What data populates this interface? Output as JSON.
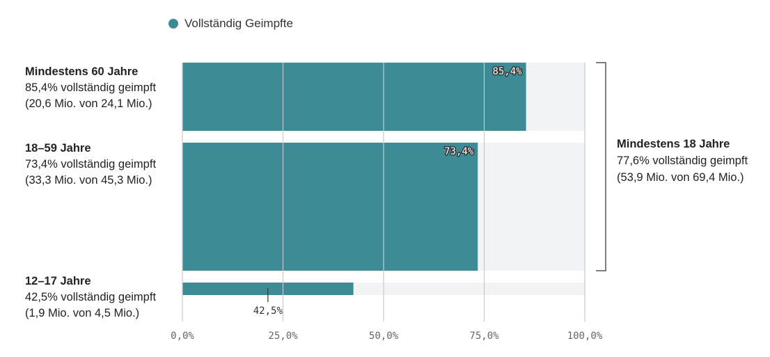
{
  "legend": {
    "label": "Vollständig Geimpfte",
    "color": "#3d8b94"
  },
  "rows": [
    {
      "title": "Mindestens 60 Jahre",
      "line1": "85,4% vollständig geimpft",
      "line2": "(20,6 Mio. von 24,1 Mio.)"
    },
    {
      "title": "18–59 Jahre",
      "line1": "73,4% vollständig geimpft",
      "line2": "(33,3 Mio. von 45,3 Mio.)"
    },
    {
      "title": "12–17 Jahre",
      "line1": "42,5% vollständig geimpft",
      "line2": "(1,9 Mio. von 4,5 Mio.)"
    }
  ],
  "group": {
    "title": "Mindestens 18 Jahre",
    "line1": "77,6% vollständig geimpft",
    "line2": "(53,9 Mio. von 69,4 Mio.)"
  },
  "chart_data": {
    "type": "bar",
    "orientation": "horizontal",
    "categories": [
      "Mindestens 60 Jahre",
      "18–59 Jahre",
      "12–17 Jahre"
    ],
    "series": [
      {
        "name": "Vollständig Geimpfte",
        "values": [
          85.4,
          73.4,
          42.5
        ]
      }
    ],
    "data_labels": [
      "85,4%",
      "73,4%",
      "42,5%"
    ],
    "population_millions": [
      24.1,
      45.3,
      4.5
    ],
    "xlim": [
      0,
      100
    ],
    "x_ticks": [
      0,
      25,
      50,
      75,
      100
    ],
    "x_tick_labels": [
      "0,0%",
      "25,0%",
      "50,0%",
      "75,0%",
      "100,0%"
    ],
    "grid": true,
    "legend_position": "top-left",
    "colors": {
      "bar": "#3d8b94",
      "track": "#f2f3f5",
      "grid": "#c8c8c8",
      "bracket": "#555555"
    }
  }
}
